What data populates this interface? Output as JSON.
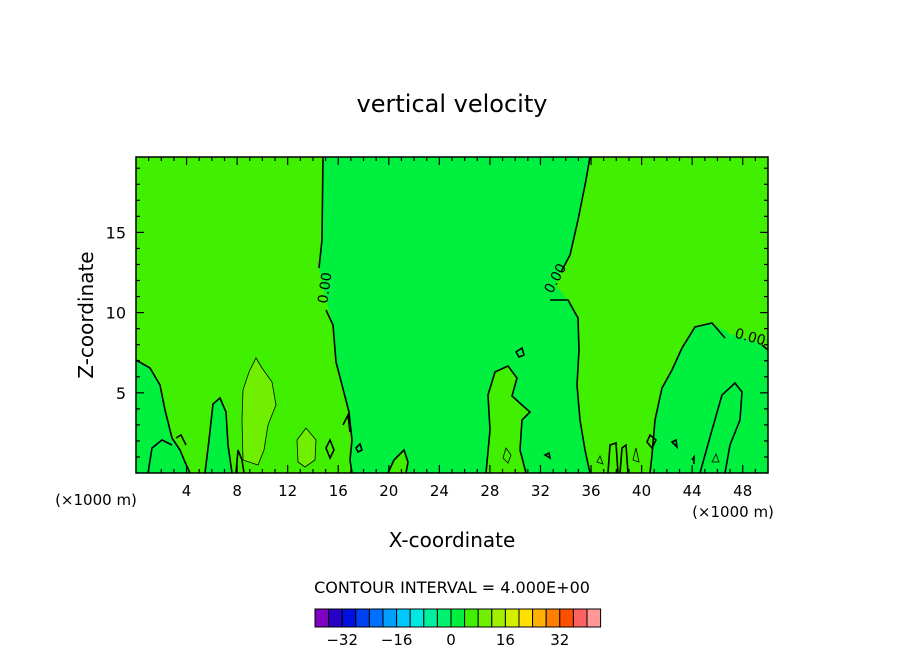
{
  "chart_data": {
    "type": "contour",
    "title": "vertical velocity",
    "xlabel": "X-coordinate",
    "ylabel": "Z-coordinate",
    "x_unit_left": "(×1000 m)",
    "x_unit_right": "(×1000 m)",
    "xlim": [
      0,
      50
    ],
    "ylim": [
      0,
      19.7
    ],
    "x_ticks": [
      4,
      8,
      12,
      16,
      20,
      24,
      28,
      32,
      36,
      40,
      44,
      48
    ],
    "x_tick_labels": [
      "4",
      "8",
      "12",
      "16",
      "20",
      "24",
      "28",
      "32",
      "36",
      "40",
      "44",
      "48"
    ],
    "y_ticks": [
      5,
      10,
      15
    ],
    "y_tick_labels": [
      "5",
      "10",
      "15"
    ],
    "contour_interval_label": "CONTOUR INTERVAL = 4.000E+00",
    "contour_labels": [
      {
        "text": "0.00",
        "x": 15.3,
        "y": 11.5,
        "rotate": -82
      },
      {
        "text": "0.00",
        "x": 33.5,
        "y": 12.0,
        "rotate": -62
      },
      {
        "text": "0.00",
        "x": 48.5,
        "y": 8.2,
        "rotate": 15
      }
    ],
    "colorbar": {
      "levels": [
        -40,
        -36,
        -32,
        -28,
        -24,
        -20,
        -16,
        -12,
        -8,
        -4,
        0,
        4,
        8,
        12,
        16,
        20,
        24,
        28,
        32,
        36,
        40
      ],
      "colors": [
        "#7f00c0",
        "#2a00c8",
        "#0010e0",
        "#0040f0",
        "#0070ff",
        "#00a0ff",
        "#00c8ff",
        "#00e8e0",
        "#00f0a0",
        "#00f070",
        "#00f040",
        "#40f000",
        "#70f000",
        "#a0f000",
        "#d0f000",
        "#ffe000",
        "#ffb000",
        "#ff8000",
        "#ff5000",
        "#ff6060",
        "#ff9898"
      ],
      "tick_values": [
        -32,
        -16,
        0,
        16,
        32
      ],
      "tick_labels": [
        "−32",
        "−16",
        "0",
        "16",
        "32"
      ]
    },
    "fill_colors": {
      "negative_region": "#00f040",
      "positive_region": "#40f000",
      "strong_positive": "#70f000"
    }
  }
}
